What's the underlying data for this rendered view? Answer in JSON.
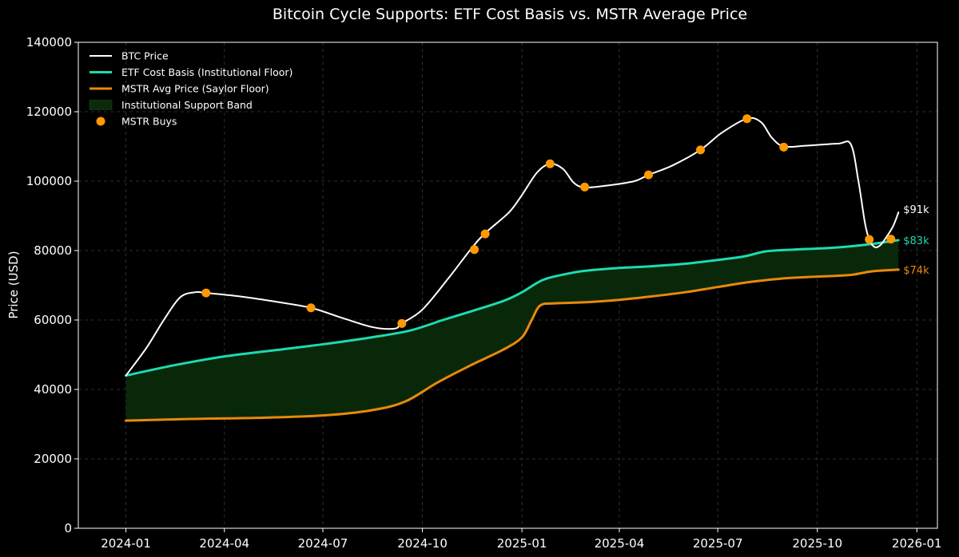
{
  "chart_data": {
    "type": "line",
    "title": "Bitcoin Cycle Supports: ETF Cost Basis vs. MSTR Average Price",
    "xlabel": "",
    "ylabel": "Price (USD)",
    "xlim": [
      "2023-11-18",
      "2026-01-20"
    ],
    "ylim": [
      0,
      140000
    ],
    "grid": true,
    "legend_position": "top-left",
    "x_ticks": [
      "2024-01",
      "2024-04",
      "2024-07",
      "2024-10",
      "2025-01",
      "2025-04",
      "2025-07",
      "2025-10",
      "2026-01"
    ],
    "y_ticks": [
      0,
      20000,
      40000,
      60000,
      80000,
      100000,
      120000,
      140000
    ],
    "legend": [
      {
        "label": "BTC Price",
        "kind": "line",
        "color": "#ffffff"
      },
      {
        "label": "ETF Cost Basis (Institutional Floor)",
        "kind": "line",
        "color": "#1ddbb0"
      },
      {
        "label": "MSTR Avg Price (Saylor Floor)",
        "kind": "line",
        "color": "#e8890c"
      },
      {
        "label": "Institutional Support Band",
        "kind": "band",
        "color": "#0a2a0a"
      },
      {
        "label": "MSTR Buys",
        "kind": "marker",
        "color": "#ff9900"
      }
    ],
    "series": [
      {
        "name": "BTC Price",
        "color": "#ffffff",
        "points": [
          [
            "2024-01-01",
            44000
          ],
          [
            "2024-01-20",
            52000
          ],
          [
            "2024-02-05",
            60000
          ],
          [
            "2024-02-20",
            66500
          ],
          [
            "2024-03-05",
            68000
          ],
          [
            "2024-03-15",
            67800
          ],
          [
            "2024-04-15",
            66800
          ],
          [
            "2024-05-20",
            65200
          ],
          [
            "2024-06-20",
            63500
          ],
          [
            "2024-07-15",
            61000
          ],
          [
            "2024-08-15",
            58000
          ],
          [
            "2024-09-05",
            57500
          ],
          [
            "2024-09-12",
            59000
          ],
          [
            "2024-10-01",
            63000
          ],
          [
            "2024-10-25",
            72000
          ],
          [
            "2024-11-15",
            80500
          ],
          [
            "2024-11-28",
            85000
          ],
          [
            "2024-12-20",
            91000
          ],
          [
            "2025-01-01",
            96000
          ],
          [
            "2025-01-15",
            102500
          ],
          [
            "2025-01-27",
            105000
          ],
          [
            "2025-02-08",
            103500
          ],
          [
            "2025-02-18",
            99500
          ],
          [
            "2025-02-28",
            98200
          ],
          [
            "2025-03-20",
            98700
          ],
          [
            "2025-04-15",
            100000
          ],
          [
            "2025-04-28",
            101800
          ],
          [
            "2025-05-20",
            104500
          ],
          [
            "2025-06-15",
            109000
          ],
          [
            "2025-07-05",
            114000
          ],
          [
            "2025-07-28",
            118000
          ],
          [
            "2025-08-10",
            117000
          ],
          [
            "2025-08-20",
            112500
          ],
          [
            "2025-08-31",
            110000
          ],
          [
            "2025-09-20",
            110200
          ],
          [
            "2025-10-20",
            110800
          ],
          [
            "2025-11-01",
            110600
          ],
          [
            "2025-11-08",
            100000
          ],
          [
            "2025-11-14",
            88000
          ],
          [
            "2025-11-18",
            83200
          ],
          [
            "2025-11-23",
            81000
          ],
          [
            "2025-11-28",
            81500
          ],
          [
            "2025-12-03",
            83500
          ],
          [
            "2025-12-10",
            87000
          ],
          [
            "2025-12-15",
            91000
          ]
        ]
      },
      {
        "name": "ETF Cost Basis (Institutional Floor)",
        "color": "#1ddbb0",
        "points": [
          [
            "2024-01-01",
            44000
          ],
          [
            "2024-02-15",
            47000
          ],
          [
            "2024-04-01",
            49500
          ],
          [
            "2024-05-15",
            51200
          ],
          [
            "2024-07-01",
            53000
          ],
          [
            "2024-08-15",
            55000
          ],
          [
            "2024-09-20",
            57000
          ],
          [
            "2024-10-20",
            60000
          ],
          [
            "2024-11-15",
            62500
          ],
          [
            "2024-12-15",
            65500
          ],
          [
            "2025-01-01",
            68000
          ],
          [
            "2025-01-20",
            71500
          ],
          [
            "2025-02-10",
            73200
          ],
          [
            "2025-03-01",
            74200
          ],
          [
            "2025-04-01",
            75000
          ],
          [
            "2025-05-01",
            75500
          ],
          [
            "2025-06-01",
            76200
          ],
          [
            "2025-07-01",
            77300
          ],
          [
            "2025-07-25",
            78300
          ],
          [
            "2025-08-15",
            79800
          ],
          [
            "2025-09-10",
            80300
          ],
          [
            "2025-10-15",
            80800
          ],
          [
            "2025-11-15",
            81700
          ],
          [
            "2025-12-15",
            83000
          ]
        ]
      },
      {
        "name": "MSTR Avg Price (Saylor Floor)",
        "color": "#e8890c",
        "points": [
          [
            "2024-01-01",
            31000
          ],
          [
            "2024-03-01",
            31500
          ],
          [
            "2024-05-01",
            31800
          ],
          [
            "2024-07-01",
            32500
          ],
          [
            "2024-08-15",
            34000
          ],
          [
            "2024-09-15",
            36500
          ],
          [
            "2024-10-15",
            42000
          ],
          [
            "2024-11-15",
            47000
          ],
          [
            "2024-12-15",
            51500
          ],
          [
            "2025-01-01",
            55000
          ],
          [
            "2025-01-10",
            60000
          ],
          [
            "2025-01-18",
            64200
          ],
          [
            "2025-02-01",
            64800
          ],
          [
            "2025-03-01",
            65100
          ],
          [
            "2025-04-01",
            65800
          ],
          [
            "2025-05-01",
            66800
          ],
          [
            "2025-06-01",
            68000
          ],
          [
            "2025-07-01",
            69500
          ],
          [
            "2025-08-01",
            71000
          ],
          [
            "2025-09-01",
            72000
          ],
          [
            "2025-10-01",
            72500
          ],
          [
            "2025-11-01",
            73000
          ],
          [
            "2025-11-20",
            74000
          ],
          [
            "2025-12-15",
            74500
          ]
        ]
      }
    ],
    "mstr_buys": [
      [
        "2024-03-15",
        67800
      ],
      [
        "2024-06-20",
        63500
      ],
      [
        "2024-09-12",
        59000
      ],
      [
        "2024-11-18",
        80300
      ],
      [
        "2024-11-28",
        84800
      ],
      [
        "2025-01-27",
        105000
      ],
      [
        "2025-02-28",
        98300
      ],
      [
        "2025-04-28",
        101800
      ],
      [
        "2025-06-15",
        109000
      ],
      [
        "2025-07-28",
        118000
      ],
      [
        "2025-08-31",
        109800
      ],
      [
        "2025-11-18",
        83200
      ],
      [
        "2025-12-08",
        83300
      ]
    ],
    "end_labels": [
      {
        "text": "$91k",
        "color": "#ffffff",
        "value": 91000
      },
      {
        "text": "$83k",
        "color": "#1ddbb0",
        "value": 83000
      },
      {
        "text": "$74k",
        "color": "#e8890c",
        "value": 74500
      }
    ]
  }
}
